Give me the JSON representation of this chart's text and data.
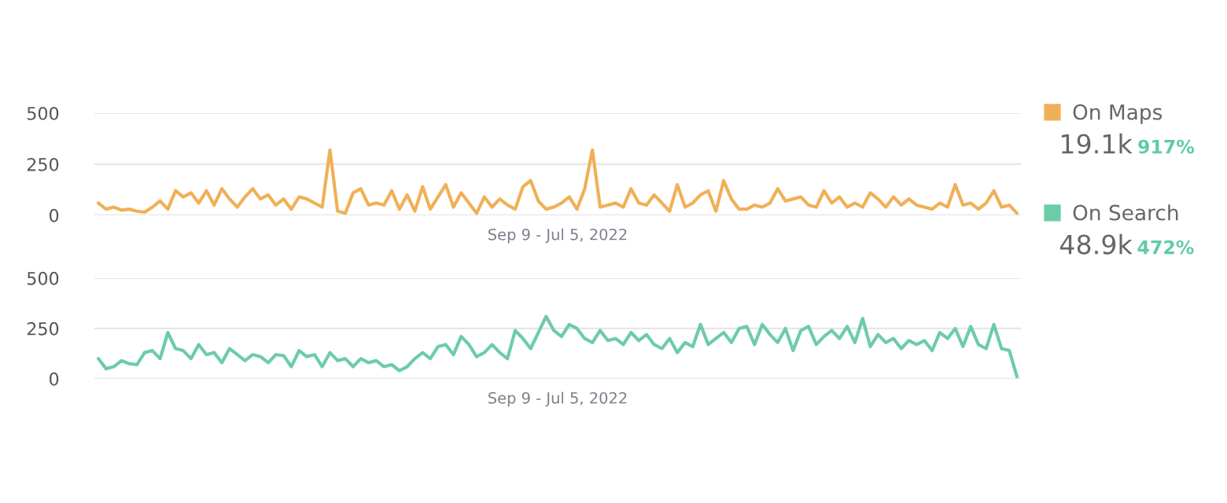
{
  "chart_data": [
    {
      "type": "line",
      "xlabel": "Sep 9 - Jul 5, 2022",
      "categories": [
        null,
        null,
        null,
        null,
        null,
        null,
        null,
        null,
        null,
        null,
        null,
        null,
        null,
        null,
        null,
        null,
        null,
        null,
        null,
        null,
        null,
        null,
        null,
        null,
        null,
        null,
        null,
        null,
        null,
        null,
        null,
        null,
        null,
        null,
        null,
        null,
        null,
        null,
        null,
        null,
        null,
        null,
        null,
        null,
        null,
        null,
        null,
        null,
        null,
        null,
        null,
        null,
        null,
        null,
        null,
        null,
        null,
        null,
        null,
        null,
        null,
        null,
        null,
        null,
        null,
        null,
        null,
        null,
        null,
        null,
        null,
        null,
        null,
        null,
        null,
        null,
        null,
        null,
        null,
        null,
        null,
        null,
        null,
        null,
        null,
        null,
        null,
        null,
        null,
        null,
        null,
        null,
        null,
        null,
        null,
        null,
        null,
        null,
        null,
        null,
        null,
        null,
        null,
        null,
        null,
        null,
        null,
        null,
        null,
        null,
        null,
        null,
        null,
        null,
        null,
        null,
        null,
        null,
        null,
        null
      ],
      "series": [
        {
          "name": "On Maps",
          "color": "#f0b057",
          "values": [
            60,
            30,
            40,
            25,
            30,
            20,
            15,
            40,
            70,
            30,
            120,
            90,
            110,
            60,
            120,
            50,
            130,
            80,
            40,
            90,
            130,
            80,
            100,
            50,
            80,
            30,
            90,
            80,
            60,
            40,
            320,
            20,
            10,
            110,
            130,
            50,
            60,
            50,
            120,
            30,
            100,
            20,
            140,
            30,
            90,
            150,
            40,
            110,
            60,
            10,
            90,
            40,
            80,
            50,
            30,
            140,
            170,
            70,
            30,
            40,
            60,
            90,
            30,
            130,
            320,
            40,
            50,
            60,
            40,
            130,
            60,
            50,
            100,
            60,
            20,
            150,
            40,
            60,
            100,
            120,
            20,
            170,
            80,
            30,
            30,
            50,
            40,
            60,
            130,
            70,
            80,
            90,
            50,
            40,
            120,
            60,
            90,
            40,
            60,
            40,
            110,
            80,
            40,
            90,
            50,
            80,
            50,
            40,
            30,
            60,
            40,
            150,
            50,
            60,
            30,
            60,
            120,
            40,
            50,
            10
          ]
        }
      ],
      "ylim": [
        0,
        500
      ],
      "yticks": [
        0,
        250,
        500
      ],
      "grid": "y",
      "tick_labels": "y",
      "legend": "right",
      "annotations": [
        "19.1k",
        "917%"
      ]
    },
    {
      "type": "line",
      "xlabel": "Sep 9 - Jul 5, 2022",
      "categories": [
        null,
        null,
        null,
        null,
        null,
        null,
        null,
        null,
        null,
        null,
        null,
        null,
        null,
        null,
        null,
        null,
        null,
        null,
        null,
        null,
        null,
        null,
        null,
        null,
        null,
        null,
        null,
        null,
        null,
        null,
        null,
        null,
        null,
        null,
        null,
        null,
        null,
        null,
        null,
        null,
        null,
        null,
        null,
        null,
        null,
        null,
        null,
        null,
        null,
        null,
        null,
        null,
        null,
        null,
        null,
        null,
        null,
        null,
        null,
        null,
        null,
        null,
        null,
        null,
        null,
        null,
        null,
        null,
        null,
        null,
        null,
        null,
        null,
        null,
        null,
        null,
        null,
        null,
        null,
        null,
        null,
        null,
        null,
        null,
        null,
        null,
        null,
        null,
        null,
        null,
        null,
        null,
        null,
        null,
        null,
        null,
        null,
        null,
        null,
        null,
        null,
        null,
        null,
        null,
        null,
        null,
        null,
        null,
        null,
        null,
        null,
        null,
        null,
        null,
        null,
        null,
        null,
        null,
        null,
        null
      ],
      "series": [
        {
          "name": "On Search",
          "color": "#6dcca8",
          "values": [
            100,
            50,
            60,
            90,
            75,
            70,
            130,
            140,
            100,
            230,
            150,
            140,
            100,
            170,
            120,
            130,
            80,
            150,
            120,
            90,
            120,
            110,
            80,
            120,
            115,
            60,
            140,
            110,
            120,
            60,
            130,
            90,
            100,
            60,
            100,
            80,
            90,
            60,
            70,
            40,
            60,
            100,
            130,
            100,
            160,
            170,
            120,
            210,
            170,
            110,
            130,
            170,
            130,
            100,
            240,
            200,
            150,
            230,
            310,
            240,
            210,
            270,
            250,
            200,
            180,
            240,
            190,
            200,
            170,
            230,
            190,
            220,
            170,
            150,
            200,
            130,
            180,
            160,
            270,
            170,
            200,
            230,
            180,
            250,
            260,
            170,
            270,
            220,
            180,
            250,
            140,
            240,
            260,
            170,
            210,
            240,
            200,
            260,
            180,
            300,
            160,
            220,
            180,
            200,
            150,
            190,
            170,
            190,
            140,
            230,
            200,
            250,
            160,
            260,
            170,
            150,
            270,
            150,
            140,
            10
          ]
        }
      ],
      "ylim": [
        0,
        500
      ],
      "yticks": [
        0,
        250,
        500
      ],
      "grid": "y",
      "tick_labels": "y",
      "legend": "right",
      "annotations": [
        "48.9k",
        "472%"
      ]
    }
  ]
}
